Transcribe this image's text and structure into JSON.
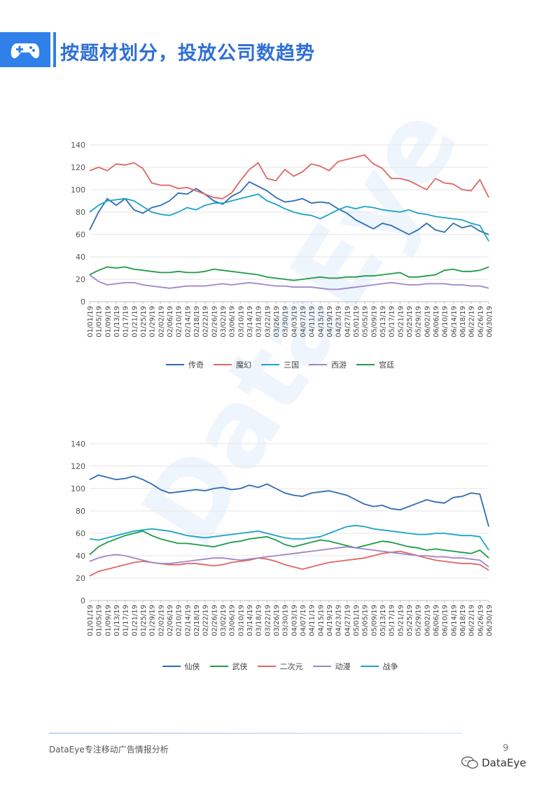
{
  "header": {
    "title": "按题材划分，投放公司数趋势",
    "icon": "gamepad-icon"
  },
  "watermark": "DataEye",
  "footer": {
    "text": "DataEye专注移动广告情报分析",
    "page": "9",
    "brand": "DataEye",
    "brand_icon": "wechat-icon"
  },
  "chart_data": [
    {
      "type": "line",
      "title": "",
      "ylim": [
        0,
        140
      ],
      "yticks": [
        0,
        20,
        40,
        60,
        80,
        100,
        120,
        140
      ],
      "x_ticks": [
        "01/01/19",
        "01/05/19",
        "01/09/19",
        "01/13/19",
        "01/17/19",
        "01/21/19",
        "01/25/19",
        "01/29/19",
        "02/02/19",
        "02/06/19",
        "02/10/19",
        "02/14/19",
        "02/18/19",
        "02/22/19",
        "02/26/19",
        "03/02/19",
        "03/06/19",
        "03/10/19",
        "03/14/19",
        "03/18/19",
        "03/22/19",
        "03/26/19",
        "03/30/19",
        "04/03/19",
        "04/07/19",
        "04/11/19",
        "04/15/19",
        "04/19/19",
        "04/23/19",
        "04/27/19",
        "05/01/19",
        "05/05/19",
        "05/09/19",
        "05/13/19",
        "05/17/19",
        "05/21/19",
        "05/25/19",
        "05/29/19",
        "06/02/19",
        "06/06/19",
        "06/10/19",
        "06/14/19",
        "06/18/19",
        "06/22/19",
        "06/26/19",
        "06/30/19"
      ],
      "series": [
        {
          "name": "传奇",
          "color": "#2c6db5",
          "values": [
            64,
            80,
            92,
            86,
            92,
            82,
            79,
            84,
            86,
            90,
            97,
            96,
            101,
            96,
            90,
            87,
            94,
            98,
            107,
            103,
            99,
            93,
            89,
            90,
            92,
            88,
            89,
            88,
            83,
            79,
            73,
            69,
            65,
            70,
            68,
            64,
            60,
            64,
            70,
            64,
            62,
            70,
            66,
            68,
            63,
            60
          ]
        },
        {
          "name": "魔幻",
          "color": "#e06666",
          "values": [
            117,
            120,
            117,
            123,
            122,
            124,
            119,
            106,
            104,
            104,
            101,
            102,
            99,
            96,
            93,
            92,
            97,
            108,
            118,
            124,
            110,
            108,
            118,
            112,
            116,
            123,
            121,
            117,
            125,
            127,
            129,
            131,
            123,
            119,
            110,
            110,
            108,
            104,
            100,
            110,
            106,
            105,
            100,
            99,
            109,
            93
          ]
        },
        {
          "name": "三国",
          "color": "#1ba3c8",
          "values": [
            80,
            86,
            90,
            91,
            92,
            90,
            85,
            80,
            78,
            77,
            80,
            84,
            82,
            86,
            88,
            88,
            90,
            92,
            94,
            96,
            90,
            87,
            83,
            80,
            78,
            77,
            74,
            78,
            82,
            85,
            83,
            85,
            84,
            82,
            81,
            80,
            82,
            79,
            78,
            76,
            75,
            74,
            73,
            70,
            68,
            54
          ]
        },
        {
          "name": "西游",
          "color": "#9e86c8",
          "values": [
            24,
            18,
            15,
            16,
            17,
            17,
            15,
            14,
            13,
            12,
            13,
            14,
            14,
            14,
            15,
            16,
            15,
            16,
            17,
            16,
            15,
            14,
            14,
            13,
            13,
            13,
            12,
            11,
            11,
            12,
            13,
            14,
            15,
            16,
            17,
            16,
            15,
            15,
            16,
            16,
            16,
            15,
            15,
            14,
            14,
            12
          ]
        },
        {
          "name": "宫廷",
          "color": "#1e9b4a",
          "values": [
            24,
            28,
            31,
            30,
            31,
            29,
            28,
            27,
            26,
            26,
            27,
            26,
            26,
            27,
            29,
            28,
            27,
            26,
            25,
            24,
            22,
            21,
            20,
            19,
            20,
            21,
            22,
            21,
            21,
            22,
            22,
            23,
            23,
            24,
            25,
            26,
            22,
            22,
            23,
            24,
            28,
            29,
            27,
            27,
            28,
            31
          ]
        }
      ],
      "legend": "bottom"
    },
    {
      "type": "line",
      "title": "",
      "ylim": [
        0,
        140
      ],
      "yticks": [
        0,
        20,
        40,
        60,
        80,
        100,
        120,
        140
      ],
      "x_ticks": [
        "01/01/19",
        "01/05/19",
        "01/09/19",
        "01/13/19",
        "01/17/19",
        "01/21/19",
        "01/25/19",
        "01/29/19",
        "02/02/19",
        "02/06/19",
        "02/10/19",
        "02/14/19",
        "02/18/19",
        "02/22/19",
        "02/26/19",
        "03/02/19",
        "03/06/19",
        "03/10/19",
        "03/14/19",
        "03/18/19",
        "03/22/19",
        "03/26/19",
        "03/30/19",
        "04/03/19",
        "04/07/19",
        "04/11/19",
        "04/15/19",
        "04/19/19",
        "04/23/19",
        "04/27/19",
        "05/01/19",
        "05/05/19",
        "05/09/19",
        "05/13/19",
        "05/17/19",
        "05/21/19",
        "05/25/19",
        "05/29/19",
        "06/02/19",
        "06/06/19",
        "06/10/19",
        "06/14/19",
        "06/18/19",
        "06/22/19",
        "06/26/19",
        "06/30/19"
      ],
      "series": [
        {
          "name": "仙侠",
          "color": "#2c6db5",
          "values": [
            108,
            112,
            110,
            108,
            109,
            111,
            108,
            104,
            99,
            96,
            97,
            98,
            99,
            98,
            100,
            101,
            99,
            100,
            103,
            101,
            104,
            100,
            96,
            94,
            93,
            96,
            97,
            98,
            96,
            94,
            90,
            86,
            84,
            85,
            82,
            81,
            84,
            87,
            90,
            88,
            87,
            92,
            93,
            96,
            95,
            66
          ]
        },
        {
          "name": "武侠",
          "color": "#1e9b4a",
          "values": [
            41,
            48,
            52,
            55,
            58,
            60,
            62,
            58,
            55,
            53,
            51,
            51,
            50,
            49,
            48,
            50,
            52,
            53,
            55,
            56,
            57,
            54,
            50,
            48,
            50,
            52,
            54,
            53,
            51,
            49,
            47,
            49,
            51,
            53,
            52,
            50,
            48,
            47,
            45,
            46,
            45,
            44,
            43,
            42,
            45,
            38
          ]
        },
        {
          "name": "二次元",
          "color": "#e06666",
          "values": [
            22,
            26,
            28,
            30,
            32,
            34,
            35,
            34,
            33,
            32,
            32,
            33,
            33,
            32,
            31,
            32,
            34,
            35,
            36,
            38,
            37,
            35,
            32,
            30,
            28,
            30,
            32,
            34,
            35,
            36,
            37,
            38,
            40,
            42,
            43,
            44,
            42,
            40,
            38,
            36,
            35,
            34,
            33,
            33,
            32,
            27
          ]
        },
        {
          "name": "动漫",
          "color": "#9e86c8",
          "values": [
            35,
            38,
            40,
            41,
            40,
            38,
            36,
            34,
            33,
            33,
            34,
            35,
            36,
            37,
            38,
            38,
            37,
            36,
            37,
            38,
            39,
            40,
            41,
            42,
            43,
            44,
            45,
            46,
            47,
            48,
            47,
            46,
            45,
            44,
            43,
            42,
            41,
            40,
            40,
            39,
            39,
            38,
            38,
            37,
            36,
            30
          ]
        },
        {
          "name": "战争",
          "color": "#1ba3c8",
          "values": [
            55,
            54,
            56,
            58,
            60,
            62,
            63,
            64,
            63,
            62,
            60,
            58,
            57,
            56,
            57,
            58,
            59,
            60,
            61,
            62,
            60,
            58,
            56,
            55,
            55,
            56,
            57,
            60,
            63,
            66,
            67,
            66,
            64,
            63,
            62,
            61,
            60,
            59,
            59,
            60,
            60,
            59,
            58,
            58,
            57,
            45
          ]
        }
      ],
      "legend": "bottom"
    }
  ]
}
